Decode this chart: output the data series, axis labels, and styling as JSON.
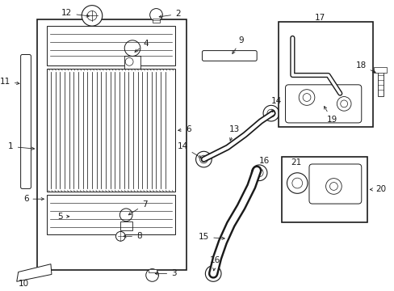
{
  "bg_color": "#ffffff",
  "line_color": "#1a1a1a",
  "label_fs": 7.5
}
